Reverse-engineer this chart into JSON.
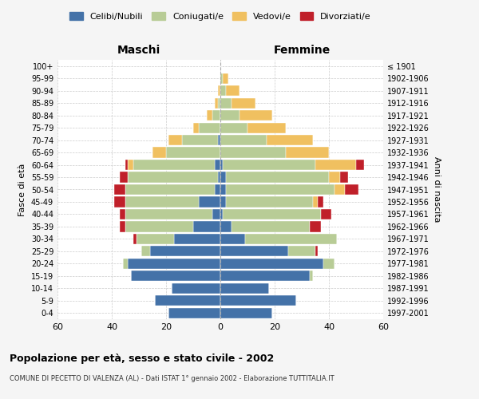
{
  "age_groups": [
    "0-4",
    "5-9",
    "10-14",
    "15-19",
    "20-24",
    "25-29",
    "30-34",
    "35-39",
    "40-44",
    "45-49",
    "50-54",
    "55-59",
    "60-64",
    "65-69",
    "70-74",
    "75-79",
    "80-84",
    "85-89",
    "90-94",
    "95-99",
    "100+"
  ],
  "birth_years": [
    "1997-2001",
    "1992-1996",
    "1987-1991",
    "1982-1986",
    "1977-1981",
    "1972-1976",
    "1967-1971",
    "1962-1966",
    "1957-1961",
    "1952-1956",
    "1947-1951",
    "1942-1946",
    "1937-1941",
    "1932-1936",
    "1927-1931",
    "1922-1926",
    "1917-1921",
    "1912-1916",
    "1907-1911",
    "1902-1906",
    "≤ 1901"
  ],
  "male": {
    "celibi": [
      19,
      24,
      18,
      33,
      34,
      26,
      17,
      10,
      3,
      8,
      2,
      1,
      2,
      0,
      1,
      0,
      0,
      0,
      0,
      0,
      0
    ],
    "coniugati": [
      0,
      0,
      0,
      0,
      2,
      3,
      14,
      25,
      32,
      27,
      33,
      33,
      30,
      20,
      13,
      8,
      3,
      1,
      0,
      0,
      0
    ],
    "vedovi": [
      0,
      0,
      0,
      0,
      0,
      0,
      0,
      0,
      0,
      0,
      0,
      0,
      2,
      5,
      5,
      2,
      2,
      1,
      1,
      0,
      0
    ],
    "divorziati": [
      0,
      0,
      0,
      0,
      0,
      0,
      1,
      2,
      2,
      4,
      4,
      3,
      1,
      0,
      0,
      0,
      0,
      0,
      0,
      0,
      0
    ]
  },
  "female": {
    "nubili": [
      19,
      28,
      18,
      33,
      38,
      25,
      9,
      4,
      1,
      2,
      2,
      2,
      1,
      0,
      0,
      0,
      0,
      0,
      0,
      0,
      0
    ],
    "coniugate": [
      0,
      0,
      0,
      1,
      4,
      10,
      34,
      29,
      36,
      32,
      40,
      38,
      34,
      24,
      17,
      10,
      7,
      4,
      2,
      1,
      0
    ],
    "vedove": [
      0,
      0,
      0,
      0,
      0,
      0,
      0,
      0,
      0,
      2,
      4,
      4,
      15,
      16,
      17,
      14,
      12,
      9,
      5,
      2,
      0
    ],
    "divorziate": [
      0,
      0,
      0,
      0,
      0,
      1,
      0,
      4,
      4,
      2,
      5,
      3,
      3,
      0,
      0,
      0,
      0,
      0,
      0,
      0,
      0
    ]
  },
  "colors": {
    "celibi": "#4472a8",
    "coniugati": "#b8cc96",
    "vedovi": "#f0c060",
    "divorziati": "#c0202a"
  },
  "xlim": 60,
  "title": "Popolazione per età, sesso e stato civile - 2002",
  "subtitle": "COMUNE DI PECETTO DI VALENZA (AL) - Dati ISTAT 1° gennaio 2002 - Elaborazione TUTTITALIA.IT",
  "ylabel_left": "Fasce di età",
  "ylabel_right": "Anni di nascita",
  "xlabel_left": "Maschi",
  "xlabel_right": "Femmine",
  "bg_color": "#f5f5f5",
  "plot_bg": "#ffffff"
}
